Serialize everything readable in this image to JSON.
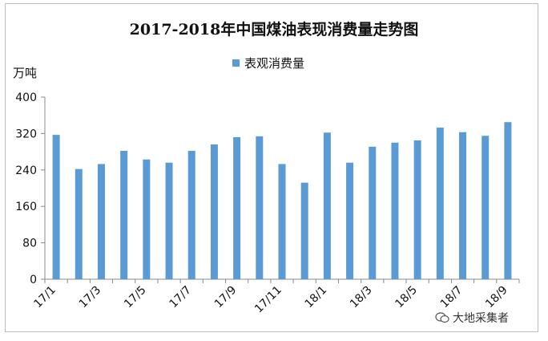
{
  "chart_data": {
    "type": "bar",
    "title": "2017-2018年中国煤油表现消费量走势图",
    "ylabel": "万吨",
    "ylim": [
      0,
      400
    ],
    "yticks": [
      0,
      80,
      160,
      240,
      320,
      400
    ],
    "categories": [
      "17/1",
      "17/2",
      "17/3",
      "17/4",
      "17/5",
      "17/6",
      "17/7",
      "17/8",
      "17/9",
      "17/10",
      "17/11",
      "17/12",
      "18/1",
      "18/2",
      "18/3",
      "18/4",
      "18/5",
      "18/6",
      "18/7",
      "18/8",
      "18/9"
    ],
    "x_tick_labels": [
      "17/1",
      "17/3",
      "17/5",
      "17/7",
      "17/9",
      "17/11",
      "18/1",
      "18/3",
      "18/5",
      "18/7",
      "18/9"
    ],
    "series": [
      {
        "name": "表观消费量",
        "values": [
          317,
          242,
          253,
          282,
          263,
          256,
          282,
          296,
          312,
          314,
          253,
          212,
          322,
          256,
          291,
          300,
          305,
          333,
          323,
          315,
          345
        ]
      }
    ],
    "legend_position": "top",
    "grid": false,
    "bar_color": "#5b9bd5"
  },
  "watermark": {
    "text": "大地采集者",
    "icon": "wechat-icon"
  }
}
